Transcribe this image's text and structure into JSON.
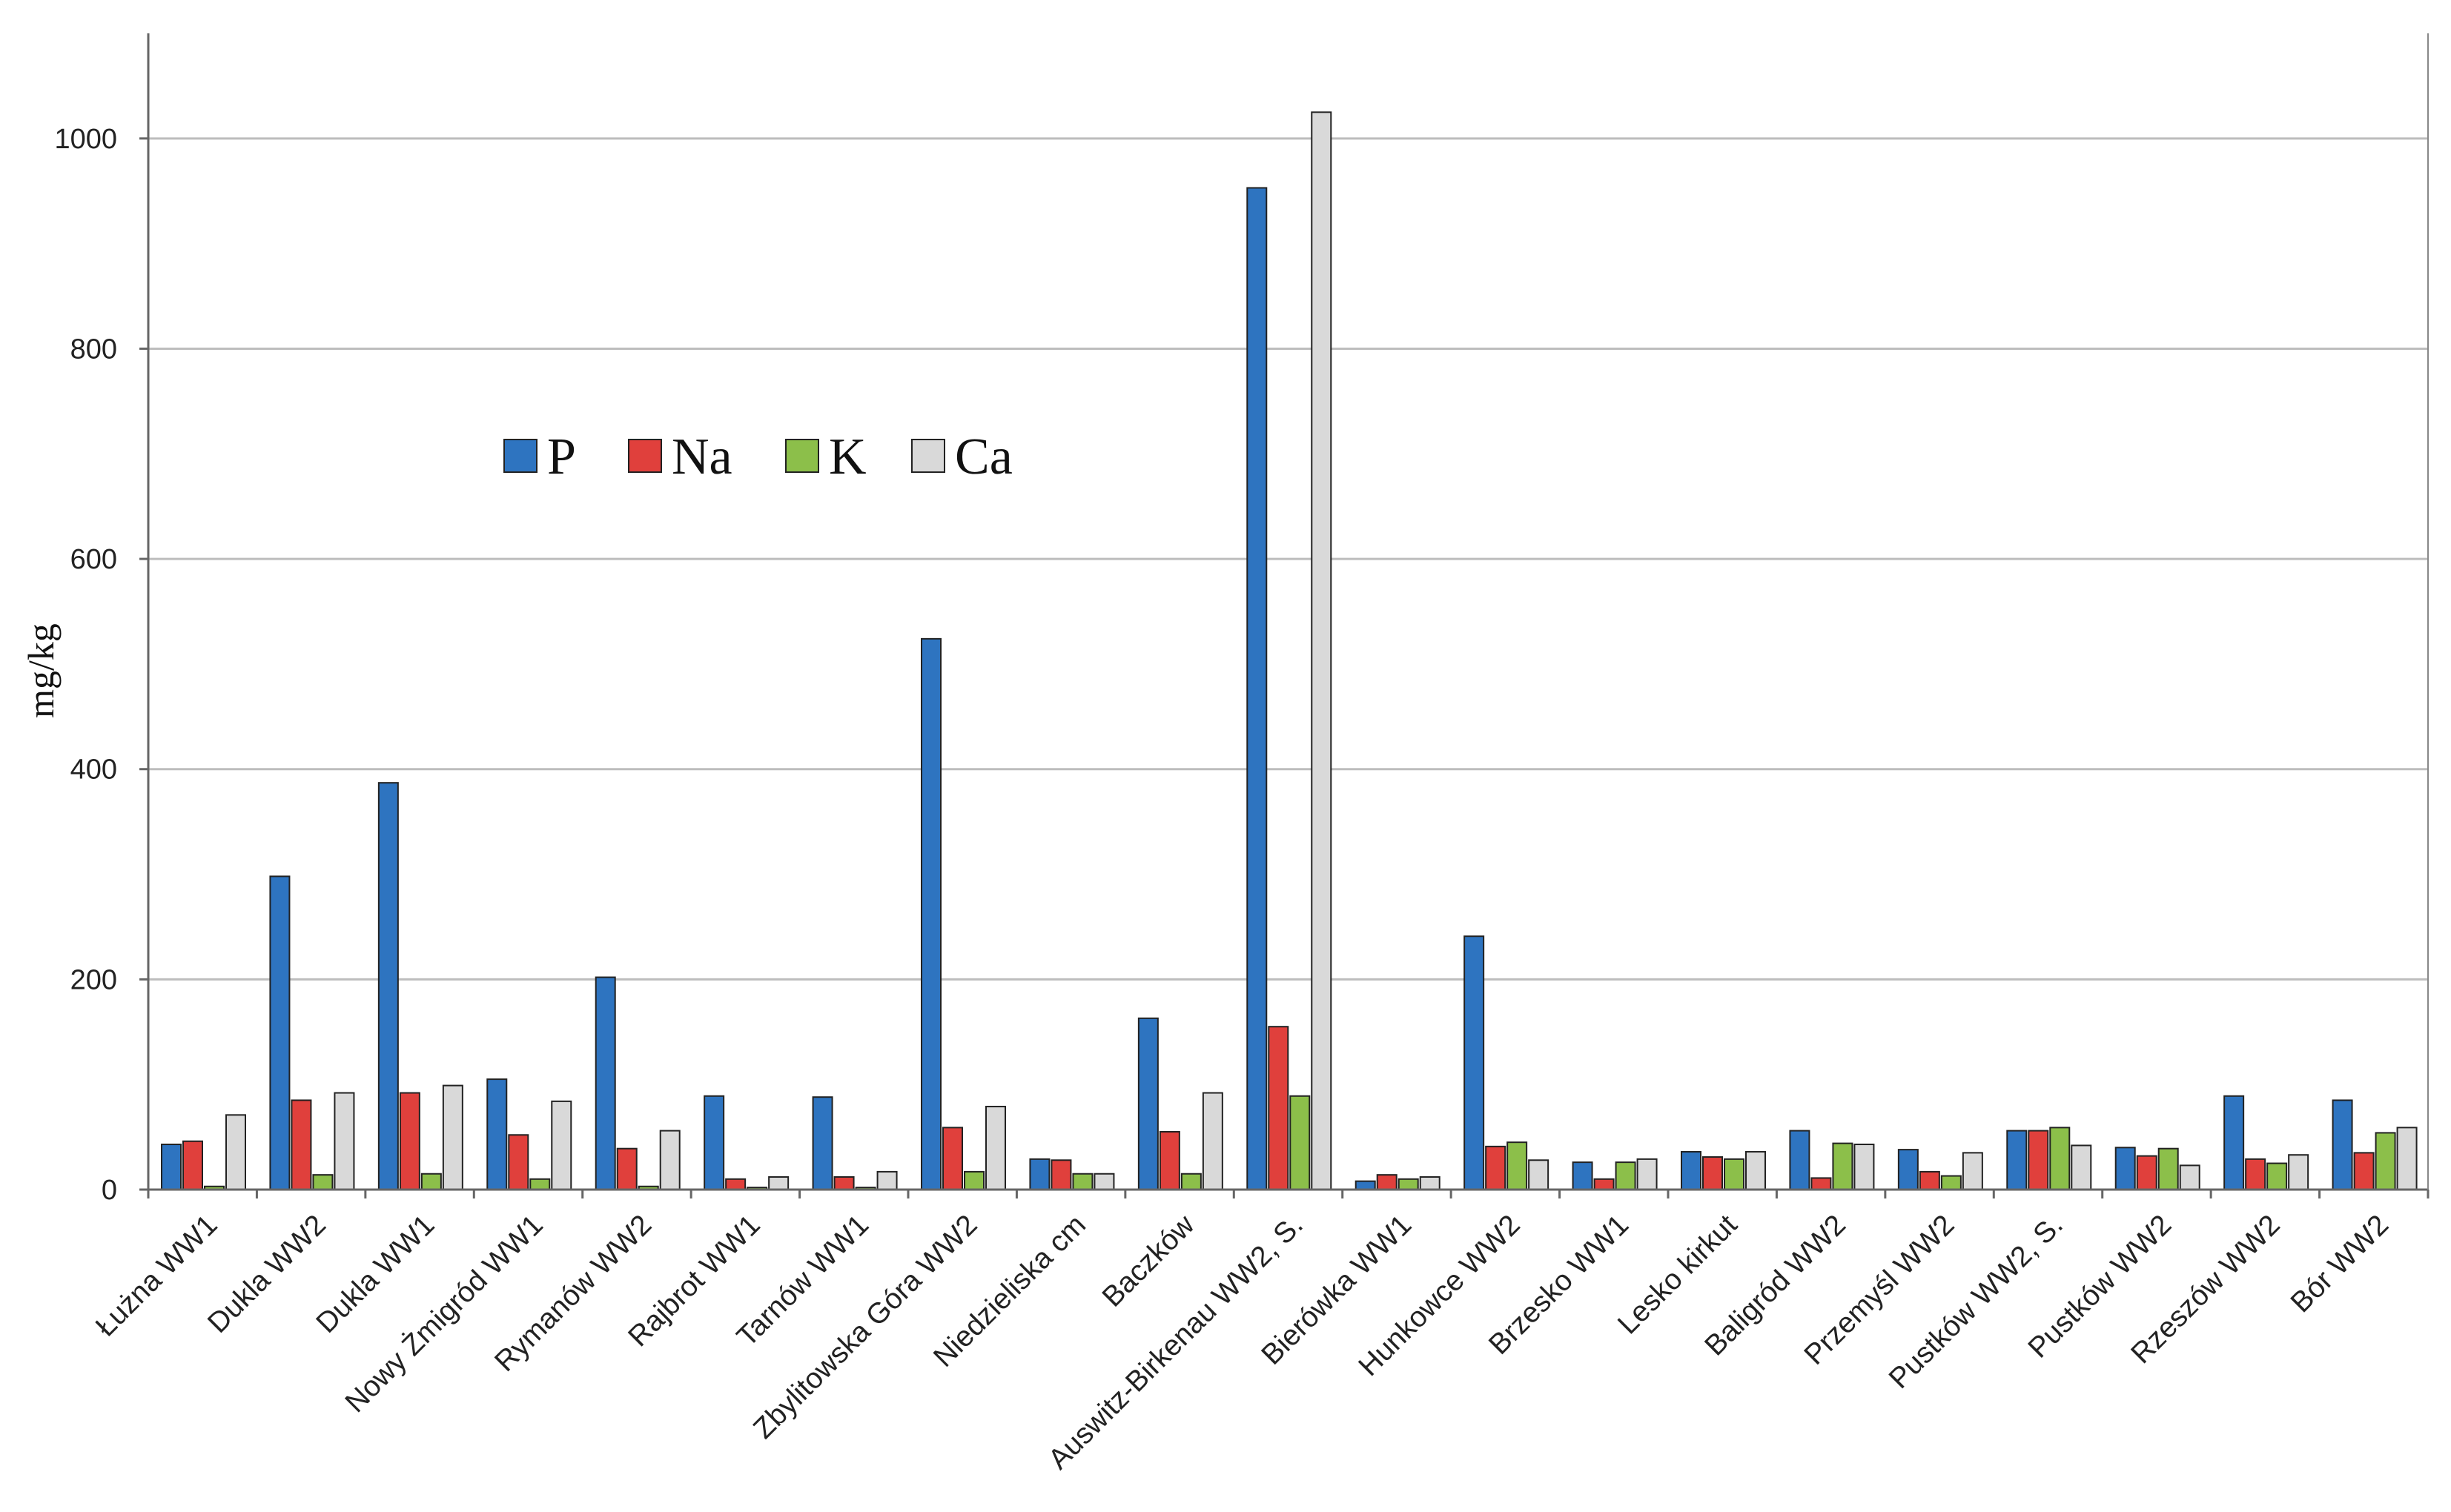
{
  "chart_data": {
    "type": "bar",
    "title": "",
    "xlabel": "",
    "ylabel": "mg/kg",
    "ylim": [
      0,
      1100
    ],
    "yticks": [
      0,
      200,
      400,
      600,
      800,
      1000
    ],
    "ytick_labels": [
      "0",
      "200",
      "400",
      "600",
      "800",
      "1000"
    ],
    "grid": true,
    "legend_position": "upper-left inside plot",
    "categories": [
      "Łużna WW1",
      "Dukla WW2",
      "Dukla WW1",
      "Nowy Żmigród WW1",
      "Rymanów WW2",
      "Rajbrot WW1",
      "Tarnów WW1",
      "Zbylitowska Góra WW2",
      "Niedzieliska cm",
      "Baczków",
      "Auswitz-Birkenau WW2, S.",
      "Bierówka WW1",
      "Hunkowce WW2",
      "Brzesko WW1",
      "Lesko kirkut",
      "Baligród WW2",
      "Przemyśl WW2",
      "Pustków WW2, S.",
      "Pustków WW2",
      "Rzeszów WW2",
      "Bór WW2"
    ],
    "series": [
      {
        "name": "P",
        "color": "#2e74c0",
        "values": [
          43,
          298,
          387,
          105,
          202,
          89,
          88,
          524,
          29,
          163,
          953,
          8,
          241,
          26,
          36,
          56,
          38,
          56,
          40,
          89,
          85
        ]
      },
      {
        "name": "Na",
        "color": "#e0403c",
        "values": [
          46,
          85,
          92,
          52,
          39,
          10,
          12,
          59,
          28,
          55,
          155,
          14,
          41,
          10,
          31,
          11,
          17,
          56,
          32,
          29,
          35
        ]
      },
      {
        "name": "K",
        "color": "#8cbf4a",
        "values": [
          3,
          14,
          15,
          10,
          3,
          2,
          2,
          17,
          15,
          15,
          89,
          10,
          45,
          26,
          29,
          44,
          13,
          59,
          39,
          25,
          54
        ]
      },
      {
        "name": "Ca",
        "color": "#d9d9d9",
        "values": [
          71,
          92,
          99,
          84,
          56,
          12,
          17,
          79,
          15,
          92,
          1025,
          12,
          28,
          29,
          36,
          43,
          35,
          42,
          23,
          33,
          59
        ]
      }
    ]
  }
}
